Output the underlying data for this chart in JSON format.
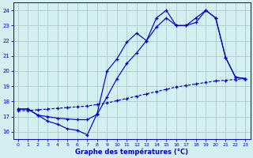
{
  "bg_color": "#d4efef",
  "grid_color": "#a8cccc",
  "line_color": "#0000cc",
  "xlim": [
    -0.5,
    23.5
  ],
  "ylim": [
    15.5,
    24.5
  ],
  "xticks": [
    0,
    1,
    2,
    3,
    4,
    5,
    6,
    7,
    8,
    9,
    10,
    11,
    12,
    13,
    14,
    15,
    16,
    17,
    18,
    19,
    20,
    21,
    22,
    23
  ],
  "yticks": [
    16,
    17,
    18,
    19,
    20,
    21,
    22,
    23,
    24
  ],
  "xlabel": "Graphe des températures (°C)",
  "line1_x": [
    0,
    1,
    2,
    3,
    4,
    5,
    6,
    7,
    8,
    9,
    10,
    11,
    12,
    13,
    14,
    15,
    16,
    17,
    18,
    19,
    20,
    21,
    22,
    23
  ],
  "line1_y": [
    17.5,
    17.5,
    17.1,
    16.7,
    16.5,
    16.2,
    16.1,
    15.8,
    17.2,
    20.0,
    20.8,
    21.9,
    22.5,
    22.0,
    23.5,
    24.0,
    23.0,
    23.0,
    23.2,
    24.0,
    23.5,
    20.9,
    19.6,
    19.5
  ],
  "line2_x": [
    0,
    1,
    2,
    3,
    4,
    5,
    6,
    7,
    8,
    9,
    10,
    11,
    12,
    13,
    14,
    15,
    16,
    17,
    18,
    19,
    20,
    21,
    22,
    23
  ],
  "line2_y": [
    17.4,
    17.4,
    17.45,
    17.5,
    17.55,
    17.6,
    17.65,
    17.7,
    17.8,
    17.9,
    18.05,
    18.2,
    18.35,
    18.5,
    18.65,
    18.8,
    18.95,
    19.05,
    19.15,
    19.25,
    19.35,
    19.4,
    19.45,
    19.5
  ],
  "line3_x": [
    0,
    1,
    2,
    3,
    4,
    5,
    6,
    7,
    8,
    9,
    10,
    11,
    12,
    13,
    14,
    15,
    16,
    17,
    18,
    19,
    20,
    21,
    22,
    23
  ],
  "line3_y": [
    17.5,
    17.5,
    17.1,
    17.0,
    16.9,
    16.85,
    16.8,
    16.8,
    17.15,
    18.3,
    19.5,
    20.5,
    21.2,
    22.0,
    22.9,
    23.5,
    23.0,
    23.0,
    23.5,
    24.0,
    23.5,
    20.9,
    19.6,
    19.5
  ]
}
